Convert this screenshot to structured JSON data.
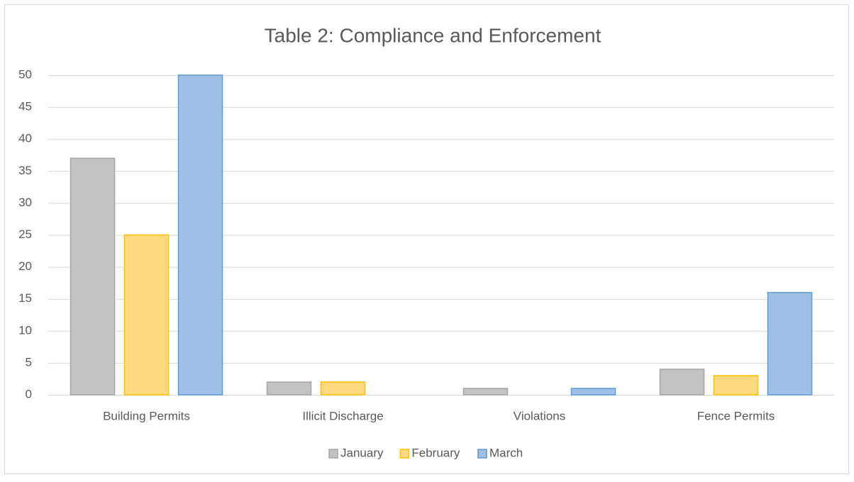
{
  "chart_data": {
    "type": "bar",
    "title": "Table 2: Compliance and Enforcement",
    "categories": [
      "Building Permits",
      "Illicit Discharge",
      "Violations",
      "Fence Permits"
    ],
    "series": [
      {
        "name": "January",
        "color": "#c3c3c3",
        "edgecolor": "#a5a5a5",
        "values": [
          37,
          2,
          1,
          4
        ]
      },
      {
        "name": "February",
        "color": "#ffd97f",
        "edgecolor": "#ffc000",
        "values": [
          25,
          2,
          0,
          3
        ]
      },
      {
        "name": "March",
        "color": "#a0bfe6",
        "edgecolor": "#5b9bd5",
        "values": [
          50,
          0,
          1,
          16
        ]
      }
    ],
    "ylim": [
      0,
      50
    ],
    "yticks": [
      0,
      5,
      10,
      15,
      20,
      25,
      30,
      35,
      40,
      45,
      50
    ],
    "grid": true,
    "legend": "bottom"
  }
}
